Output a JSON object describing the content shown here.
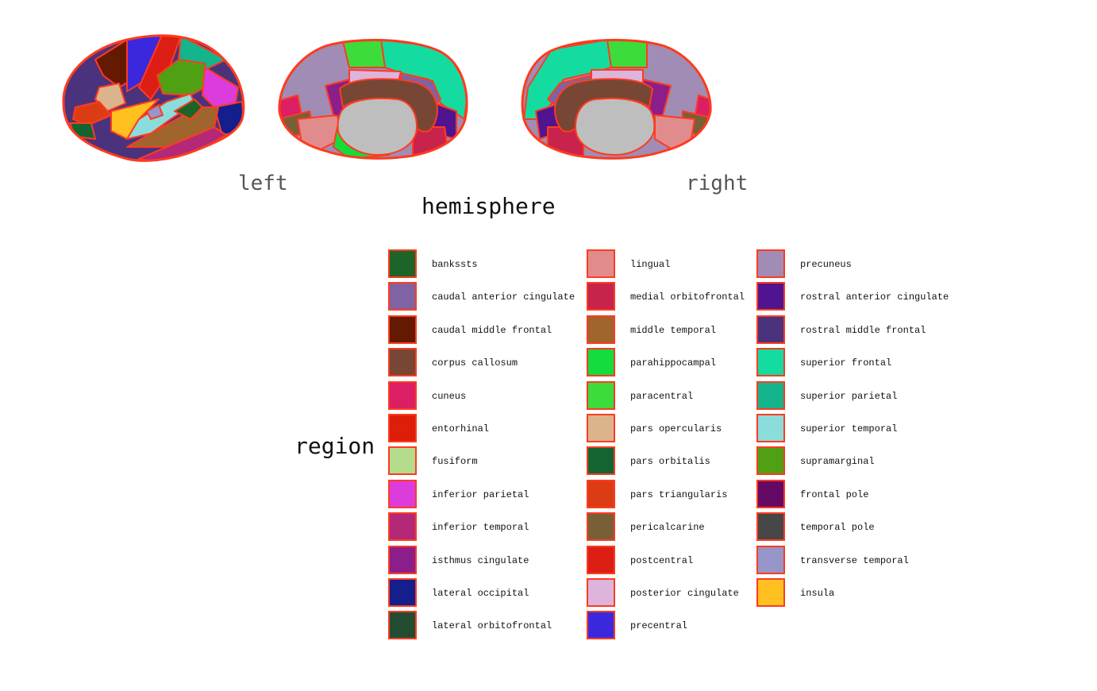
{
  "hemisphere": {
    "title": "hemisphere",
    "left_label": "left",
    "right_label": "right"
  },
  "region": {
    "title": "region",
    "outline_color": "#ff3b1f",
    "columns": [
      [
        {
          "label": "bankssts",
          "color": "#1d6428"
        },
        {
          "label": "caudal anterior cingulate",
          "color": "#7f63a3"
        },
        {
          "label": "caudal middle frontal",
          "color": "#641a00"
        },
        {
          "label": "corpus callosum",
          "color": "#784634"
        },
        {
          "label": "cuneus",
          "color": "#dc1e64"
        },
        {
          "label": "entorhinal",
          "color": "#dc1e0a"
        },
        {
          "label": "fusiform",
          "color": "#b4dc8c"
        },
        {
          "label": "inferior parietal",
          "color": "#dc3cdc"
        },
        {
          "label": "inferior temporal",
          "color": "#b42878"
        },
        {
          "label": "isthmus cingulate",
          "color": "#8c1e8c"
        },
        {
          "label": "lateral occipital",
          "color": "#141e8c"
        },
        {
          "label": "lateral orbitofrontal",
          "color": "#234b32"
        }
      ],
      [
        {
          "label": "lingual",
          "color": "#e18c8c"
        },
        {
          "label": "medial orbitofrontal",
          "color": "#c8234b"
        },
        {
          "label": "middle temporal",
          "color": "#a0642d"
        },
        {
          "label": "parahippocampal",
          "color": "#14dc3c"
        },
        {
          "label": "paracentral",
          "color": "#3cdc3c"
        },
        {
          "label": "pars opercularis",
          "color": "#dcb48c"
        },
        {
          "label": "pars orbitalis",
          "color": "#146432"
        },
        {
          "label": "pars triangularis",
          "color": "#dc3c14"
        },
        {
          "label": "pericalcarine",
          "color": "#785f38"
        },
        {
          "label": "postcentral",
          "color": "#dc1e14"
        },
        {
          "label": "posterior cingulate",
          "color": "#dcb4dc"
        },
        {
          "label": "precentral",
          "color": "#3c28dc"
        }
      ],
      [
        {
          "label": "precuneus",
          "color": "#a08cb4"
        },
        {
          "label": "rostral anterior cingulate",
          "color": "#501490"
        },
        {
          "label": "rostral middle frontal",
          "color": "#4b327d"
        },
        {
          "label": "superior frontal",
          "color": "#14dca0"
        },
        {
          "label": "superior parietal",
          "color": "#14b48c"
        },
        {
          "label": "superior temporal",
          "color": "#8cdcdc"
        },
        {
          "label": "supramarginal",
          "color": "#50a014"
        },
        {
          "label": "frontal pole",
          "color": "#640a64"
        },
        {
          "label": "temporal pole",
          "color": "#464646"
        },
        {
          "label": "transverse temporal",
          "color": "#9696c8"
        },
        {
          "label": "insula",
          "color": "#ffc020"
        }
      ]
    ]
  }
}
